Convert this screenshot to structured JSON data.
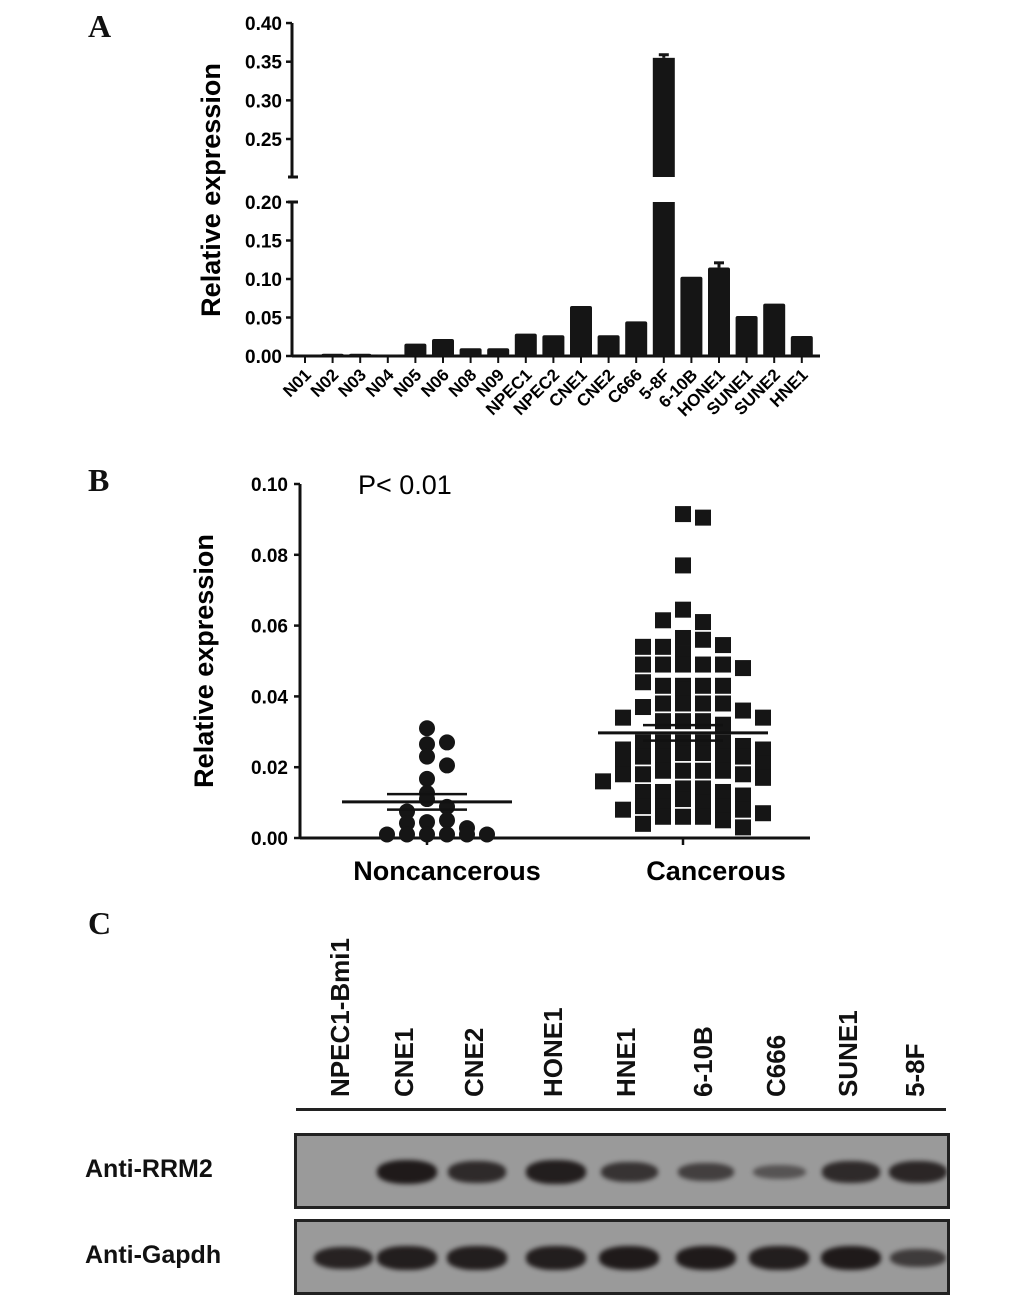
{
  "panels": {
    "a": "A",
    "b": "B",
    "c": "C"
  },
  "chart_data": [
    {
      "type": "bar",
      "panel": "A",
      "ylabel": "Relative expression",
      "y_break": [
        0.2,
        0.22
      ],
      "ylim": [
        0,
        0.4
      ],
      "yticks": [
        "0.00",
        "0.05",
        "0.10",
        "0.15",
        "0.20",
        "0.25",
        "0.30",
        "0.35",
        "0.40"
      ],
      "categories": [
        "N01",
        "N02",
        "N03",
        "N04",
        "N05",
        "N06",
        "N08",
        "N09",
        "NPEC1",
        "NPEC2",
        "CNE1",
        "CNE2",
        "C666",
        "5-8F",
        "6-10B",
        "HONE1",
        "SUNE1",
        "SUNE2",
        "HNE1"
      ],
      "values": [
        0.0,
        0.003,
        0.003,
        0.002,
        0.016,
        0.022,
        0.01,
        0.01,
        0.029,
        0.027,
        0.065,
        0.027,
        0.045,
        0.355,
        0.103,
        0.115,
        0.052,
        0.068,
        0.026
      ],
      "errors": [
        0,
        0.001,
        0.001,
        0.001,
        0.001,
        0.001,
        0.001,
        0.001,
        0.001,
        0.001,
        0.001,
        0.001,
        0.001,
        0.004,
        0.001,
        0.006,
        0.001,
        0.002,
        0.001
      ]
    },
    {
      "type": "scatter",
      "panel": "B",
      "annotation": "P< 0.01",
      "ylabel": "Relative expression",
      "ylim": [
        0,
        0.1
      ],
      "yticks": [
        "0.00",
        "0.02",
        "0.04",
        "0.06",
        "0.08",
        "0.10"
      ],
      "categories": [
        "Noncancerous",
        "Cancerous"
      ],
      "series": [
        {
          "name": "Noncancerous",
          "marker": "circle",
          "mean": 0.0102,
          "sem": 0.0022,
          "values": [
            0.031,
            0.0265,
            0.027,
            0.023,
            0.0205,
            0.0167,
            0.0127,
            0.011,
            0.0088,
            0.0075,
            0.0045,
            0.005,
            0.0042,
            0.0028,
            0.001,
            0.001,
            0.001,
            0.001,
            0.001,
            0.001
          ]
        },
        {
          "name": "Cancerous",
          "marker": "square",
          "mean": 0.0297,
          "sem": 0.0022,
          "values": [
            0.0915,
            0.0905,
            0.077,
            0.0645,
            0.061,
            0.0615,
            0.052,
            0.0565,
            0.056,
            0.054,
            0.0545,
            0.054,
            0.049,
            0.049,
            0.049,
            0.049,
            0.049,
            0.048,
            0.043,
            0.043,
            0.043,
            0.043,
            0.044,
            0.042,
            0.038,
            0.038,
            0.038,
            0.038,
            0.037,
            0.036,
            0.034,
            0.034,
            0.033,
            0.033,
            0.033,
            0.032,
            0.027,
            0.027,
            0.027,
            0.027,
            0.027,
            0.026,
            0.025,
            0.025,
            0.024,
            0.024,
            0.023,
            0.023,
            0.023,
            0.023,
            0.022,
            0.021,
            0.019,
            0.019,
            0.019,
            0.019,
            0.018,
            0.018,
            0.018,
            0.017,
            0.016,
            0.014,
            0.014,
            0.013,
            0.013,
            0.013,
            0.012,
            0.011,
            0.01,
            0.009,
            0.009,
            0.009,
            0.008,
            0.008,
            0.007,
            0.006,
            0.006,
            0.006,
            0.005,
            0.004,
            0.003
          ]
        }
      ]
    }
  ],
  "blot": {
    "lanes": [
      "NPEC1-Bmi1",
      "CNE1",
      "CNE2",
      "HONE1",
      "HNE1",
      "6-10B",
      "C666",
      "SUNE1",
      "5-8F"
    ],
    "rows": [
      {
        "label": "Anti-RRM2",
        "intensity": [
          0,
          1.0,
          0.8,
          0.95,
          0.7,
          0.55,
          0.3,
          0.8,
          0.85
        ]
      },
      {
        "label": "Anti-Gapdh",
        "intensity": [
          0.9,
          0.95,
          0.95,
          0.95,
          1.0,
          1.0,
          0.95,
          1.0,
          0.6
        ]
      }
    ]
  }
}
